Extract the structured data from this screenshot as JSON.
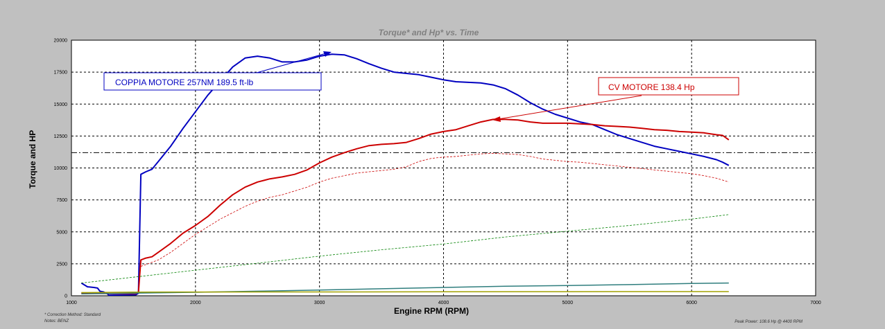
{
  "chart_data": {
    "type": "line",
    "title": "Torque* and Hp* vs. Time",
    "xlabel": "Engine RPM (RPM)",
    "ylabel": "Torque and HP",
    "xlim": [
      1000,
      7000
    ],
    "ylim": [
      0,
      20000
    ],
    "x_ticks": [
      1000,
      2000,
      3000,
      4000,
      5000,
      6000,
      7000
    ],
    "y_ticks": [
      0,
      2500,
      5000,
      7500,
      10000,
      12500,
      15000,
      17500,
      20000
    ],
    "grid": true,
    "reference_line_y": 11200,
    "series": [
      {
        "color": "#0000c0",
        "width": 2,
        "points": [
          [
            1080,
            1000
          ],
          [
            1130,
            700
          ],
          [
            1180,
            650
          ],
          [
            1210,
            600
          ],
          [
            1230,
            350
          ],
          [
            1260,
            300
          ],
          [
            1290,
            150
          ],
          [
            1300,
            50
          ],
          [
            1520,
            80
          ],
          [
            1540,
            200
          ],
          [
            1560,
            9500
          ],
          [
            1600,
            9700
          ],
          [
            1650,
            9900
          ],
          [
            1700,
            10500
          ],
          [
            1800,
            11700
          ],
          [
            1900,
            13100
          ],
          [
            2000,
            14400
          ],
          [
            2100,
            15700
          ],
          [
            2200,
            16800
          ],
          [
            2300,
            17900
          ],
          [
            2400,
            18600
          ],
          [
            2500,
            18750
          ],
          [
            2600,
            18600
          ],
          [
            2700,
            18300
          ],
          [
            2800,
            18300
          ],
          [
            2900,
            18450
          ],
          [
            3000,
            18750
          ],
          [
            3100,
            18900
          ],
          [
            3200,
            18850
          ],
          [
            3300,
            18550
          ],
          [
            3400,
            18150
          ],
          [
            3500,
            17800
          ],
          [
            3600,
            17500
          ],
          [
            3700,
            17400
          ],
          [
            3800,
            17300
          ],
          [
            3900,
            17100
          ],
          [
            4000,
            16900
          ],
          [
            4100,
            16750
          ],
          [
            4200,
            16700
          ],
          [
            4300,
            16650
          ],
          [
            4400,
            16500
          ],
          [
            4500,
            16200
          ],
          [
            4600,
            15700
          ],
          [
            4700,
            15100
          ],
          [
            4800,
            14600
          ],
          [
            4900,
            14200
          ],
          [
            5000,
            13900
          ],
          [
            5100,
            13600
          ],
          [
            5200,
            13400
          ],
          [
            5300,
            13000
          ],
          [
            5400,
            12600
          ],
          [
            5500,
            12300
          ],
          [
            5600,
            12000
          ],
          [
            5700,
            11700
          ],
          [
            5800,
            11500
          ],
          [
            5900,
            11300
          ],
          [
            6000,
            11100
          ],
          [
            6100,
            10900
          ],
          [
            6200,
            10650
          ],
          [
            6250,
            10450
          ],
          [
            6300,
            10200
          ]
        ]
      },
      {
        "color": "#cc0000",
        "width": 2,
        "points": [
          [
            1080,
            200
          ],
          [
            1300,
            180
          ],
          [
            1520,
            180
          ],
          [
            1540,
            250
          ],
          [
            1560,
            2800
          ],
          [
            1600,
            2950
          ],
          [
            1650,
            3050
          ],
          [
            1700,
            3400
          ],
          [
            1800,
            4100
          ],
          [
            1900,
            4900
          ],
          [
            2000,
            5500
          ],
          [
            2100,
            6200
          ],
          [
            2200,
            7100
          ],
          [
            2300,
            7900
          ],
          [
            2400,
            8500
          ],
          [
            2500,
            8900
          ],
          [
            2600,
            9150
          ],
          [
            2700,
            9300
          ],
          [
            2800,
            9500
          ],
          [
            2900,
            9850
          ],
          [
            3000,
            10400
          ],
          [
            3100,
            10850
          ],
          [
            3200,
            11200
          ],
          [
            3300,
            11500
          ],
          [
            3400,
            11750
          ],
          [
            3500,
            11850
          ],
          [
            3600,
            11900
          ],
          [
            3700,
            12000
          ],
          [
            3800,
            12300
          ],
          [
            3900,
            12650
          ],
          [
            4000,
            12850
          ],
          [
            4100,
            13000
          ],
          [
            4200,
            13300
          ],
          [
            4300,
            13600
          ],
          [
            4400,
            13800
          ],
          [
            4500,
            13800
          ],
          [
            4600,
            13750
          ],
          [
            4700,
            13600
          ],
          [
            4800,
            13500
          ],
          [
            5000,
            13500
          ],
          [
            5200,
            13400
          ],
          [
            5300,
            13300
          ],
          [
            5400,
            13250
          ],
          [
            5500,
            13200
          ],
          [
            5600,
            13100
          ],
          [
            5700,
            13000
          ],
          [
            5800,
            12950
          ],
          [
            5900,
            12850
          ],
          [
            6000,
            12800
          ],
          [
            6100,
            12750
          ],
          [
            6200,
            12600
          ],
          [
            6250,
            12550
          ],
          [
            6300,
            12200
          ]
        ]
      },
      {
        "color": "#cc0000",
        "width": 0.8,
        "dashed": true,
        "points": [
          [
            1560,
            2300
          ],
          [
            1700,
            2800
          ],
          [
            1800,
            3400
          ],
          [
            1900,
            4100
          ],
          [
            2000,
            4800
          ],
          [
            2100,
            5400
          ],
          [
            2200,
            6000
          ],
          [
            2300,
            6500
          ],
          [
            2400,
            7000
          ],
          [
            2500,
            7400
          ],
          [
            2600,
            7700
          ],
          [
            2700,
            7900
          ],
          [
            2800,
            8200
          ],
          [
            2900,
            8500
          ],
          [
            3000,
            8900
          ],
          [
            3100,
            9200
          ],
          [
            3200,
            9400
          ],
          [
            3300,
            9600
          ],
          [
            3400,
            9700
          ],
          [
            3500,
            9800
          ],
          [
            3600,
            9900
          ],
          [
            3700,
            10100
          ],
          [
            3800,
            10500
          ],
          [
            3900,
            10750
          ],
          [
            4000,
            10850
          ],
          [
            4100,
            10900
          ],
          [
            4200,
            11000
          ],
          [
            4300,
            11100
          ],
          [
            4400,
            11150
          ],
          [
            4500,
            11100
          ],
          [
            4600,
            11050
          ],
          [
            4700,
            10900
          ],
          [
            4800,
            10700
          ],
          [
            4900,
            10600
          ],
          [
            5000,
            10500
          ],
          [
            5100,
            10450
          ],
          [
            5200,
            10350
          ],
          [
            5300,
            10250
          ],
          [
            5400,
            10150
          ],
          [
            5500,
            10050
          ],
          [
            5600,
            9950
          ],
          [
            5700,
            9850
          ],
          [
            5800,
            9750
          ],
          [
            5900,
            9650
          ],
          [
            6000,
            9550
          ],
          [
            6100,
            9400
          ],
          [
            6200,
            9200
          ],
          [
            6300,
            8900
          ]
        ]
      },
      {
        "color": "#008000",
        "width": 0.8,
        "dashed": true,
        "points": [
          [
            1080,
            1000
          ],
          [
            1500,
            1450
          ],
          [
            2000,
            2000
          ],
          [
            2500,
            2550
          ],
          [
            3000,
            3100
          ],
          [
            3500,
            3600
          ],
          [
            4000,
            4050
          ],
          [
            4500,
            4600
          ],
          [
            5000,
            5050
          ],
          [
            5500,
            5500
          ],
          [
            6000,
            6000
          ],
          [
            6300,
            6350
          ]
        ]
      },
      {
        "color": "#2e7d7d",
        "width": 1.5,
        "points": [
          [
            1080,
            150
          ],
          [
            1500,
            200
          ],
          [
            2000,
            270
          ],
          [
            2500,
            360
          ],
          [
            3000,
            450
          ],
          [
            3500,
            550
          ],
          [
            4000,
            650
          ],
          [
            4500,
            750
          ],
          [
            5000,
            800
          ],
          [
            5500,
            870
          ],
          [
            6000,
            960
          ],
          [
            6300,
            1000
          ]
        ]
      },
      {
        "color": "#a0a000",
        "width": 1.5,
        "points": [
          [
            1080,
            250
          ],
          [
            1500,
            280
          ],
          [
            2000,
            290
          ],
          [
            3000,
            300
          ],
          [
            4000,
            310
          ],
          [
            5000,
            320
          ],
          [
            6000,
            325
          ],
          [
            6300,
            325
          ]
        ]
      }
    ],
    "annotations": [
      {
        "text": "COPPIA MOTORE 257NM 189.5 ft-lb",
        "color": "#0000c0"
      },
      {
        "text": "CV MOTORE 138.4 Hp",
        "color": "#cc0000"
      }
    ],
    "footer": {
      "correction": "* Correction Method: Standard",
      "notes": "Notes: BENZ",
      "peak": "Peak Power: 108.6 Hp @ 4400 RPM"
    }
  }
}
